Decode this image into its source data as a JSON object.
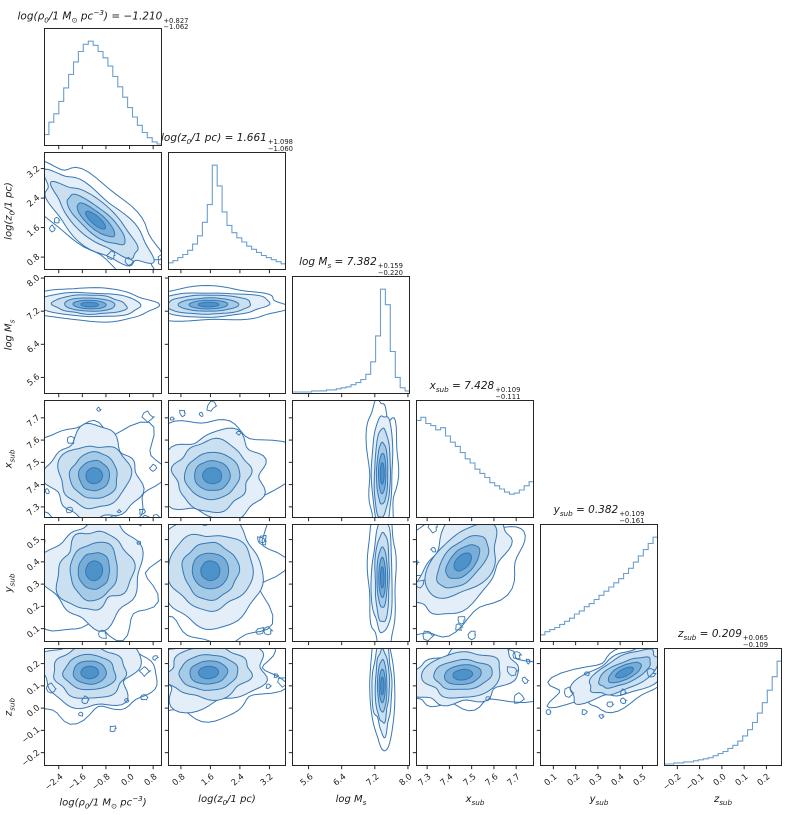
{
  "figure": {
    "background": "#ffffff",
    "spine_color": "#262626",
    "hist_color": "#6b9fce",
    "contour_stroke": "#3677b4",
    "contour_fills": [
      "none",
      "#e4eef8",
      "#cadff0",
      "#a5cbe6",
      "#77add7",
      "#4d92c8"
    ],
    "text_color": "#1a1a1a"
  },
  "chart_data": {
    "type": "heatmap",
    "layout": "corner-triangle-6x6-posterior",
    "description": "Corner plot: 1D marginal histograms on the diagonal, 2D filled contour densities below the diagonal.",
    "parameters": [
      {
        "id": "log_rho0",
        "label": "log(ρ_{0}/1 M_{⊙} pc^{−3})",
        "value": "−1.210",
        "err_plus": "+0.827",
        "err_minus": "−1.062",
        "range": [
          -2.9,
          1.1
        ],
        "ticks": [
          -2.4,
          -1.6,
          -0.8,
          0.0,
          0.8
        ],
        "tick_labels": [
          "−2.4",
          "−1.6",
          "−0.8",
          "0.0",
          "0.8"
        ],
        "hist": [
          0.1,
          0.22,
          0.3,
          0.42,
          0.55,
          0.68,
          0.8,
          0.9,
          0.97,
          1.0,
          0.96,
          0.9,
          0.84,
          0.76,
          0.66,
          0.56,
          0.46,
          0.36,
          0.27,
          0.19,
          0.12,
          0.07,
          0.03,
          0.01
        ]
      },
      {
        "id": "log_z0",
        "label": "log(z_{0}/1 pc)",
        "value": "1.661",
        "err_plus": "+1.098",
        "err_minus": "−1.060",
        "range": [
          0.45,
          3.65
        ],
        "ticks": [
          0.8,
          1.6,
          2.4,
          3.2
        ],
        "tick_labels": [
          "0.8",
          "1.6",
          "2.4",
          "3.2"
        ],
        "hist": [
          0.06,
          0.08,
          0.11,
          0.14,
          0.18,
          0.24,
          0.32,
          0.45,
          0.62,
          1.0,
          0.8,
          0.55,
          0.42,
          0.35,
          0.3,
          0.26,
          0.22,
          0.19,
          0.16,
          0.13,
          0.11,
          0.09,
          0.07,
          0.05
        ]
      },
      {
        "id": "log_Ms",
        "label": "log M_{s}",
        "value": "7.382",
        "err_plus": "+0.159",
        "err_minus": "−0.220",
        "range": [
          5.2,
          8.05
        ],
        "ticks": [
          5.6,
          6.4,
          7.2,
          8.0
        ],
        "tick_labels": [
          "5.6",
          "6.4",
          "7.2",
          "8.0"
        ],
        "hist": [
          0.01,
          0.01,
          0.01,
          0.01,
          0.02,
          0.02,
          0.02,
          0.03,
          0.03,
          0.04,
          0.05,
          0.06,
          0.08,
          0.1,
          0.13,
          0.18,
          0.3,
          0.55,
          1.0,
          0.85,
          0.4,
          0.15,
          0.05,
          0.02
        ]
      },
      {
        "id": "x_sub",
        "label": "x_{sub}",
        "value": "7.428",
        "err_plus": "+0.109",
        "err_minus": "−0.111",
        "range": [
          7.25,
          7.78
        ],
        "ticks": [
          7.3,
          7.4,
          7.5,
          7.6,
          7.7
        ],
        "tick_labels": [
          "7.3",
          "7.4",
          "7.5",
          "7.6",
          "7.7"
        ],
        "hist": [
          0.93,
          0.96,
          0.9,
          0.88,
          0.84,
          0.86,
          0.78,
          0.72,
          0.68,
          0.62,
          0.56,
          0.52,
          0.46,
          0.42,
          0.38,
          0.33,
          0.3,
          0.27,
          0.24,
          0.22,
          0.23,
          0.26,
          0.3,
          0.34
        ]
      },
      {
        "id": "y_sub",
        "label": "y_{sub}",
        "value": "0.382",
        "err_plus": "+0.109",
        "err_minus": "−0.161",
        "range": [
          0.04,
          0.57
        ],
        "ticks": [
          0.1,
          0.2,
          0.3,
          0.4,
          0.5
        ],
        "tick_labels": [
          "0.1",
          "0.2",
          "0.3",
          "0.4",
          "0.5"
        ],
        "hist": [
          0.06,
          0.09,
          0.11,
          0.13,
          0.16,
          0.19,
          0.22,
          0.26,
          0.29,
          0.33,
          0.36,
          0.4,
          0.44,
          0.48,
          0.52,
          0.56,
          0.6,
          0.65,
          0.7,
          0.76,
          0.82,
          0.88,
          0.94,
          1.0
        ]
      },
      {
        "id": "z_sub",
        "label": "z_{sub}",
        "value": "0.209",
        "err_plus": "+0.065",
        "err_minus": "−0.109",
        "range": [
          -0.26,
          0.27
        ],
        "ticks": [
          -0.2,
          -0.1,
          0.0,
          0.1,
          0.2
        ],
        "tick_labels": [
          "−0.2",
          "−0.1",
          "0.0",
          "0.1",
          "0.2"
        ],
        "hist": [
          0.01,
          0.01,
          0.02,
          0.02,
          0.03,
          0.03,
          0.04,
          0.05,
          0.06,
          0.07,
          0.09,
          0.11,
          0.13,
          0.16,
          0.19,
          0.23,
          0.28,
          0.34,
          0.41,
          0.5,
          0.6,
          0.72,
          0.85,
          1.0
        ]
      }
    ],
    "panels_2d": [
      {
        "x": "log_rho0",
        "y": "log_z0",
        "center": [
          -1.15,
          1.8
        ],
        "sigma": [
          0.85,
          0.6
        ],
        "corr": -0.8,
        "noise": 0.55
      },
      {
        "x": "log_rho0",
        "y": "log_Ms",
        "center": [
          -1.35,
          7.36
        ],
        "sigma": [
          0.75,
          0.14
        ],
        "corr": -0.1,
        "noise": 0.25
      },
      {
        "x": "log_z0",
        "y": "log_Ms",
        "center": [
          1.55,
          7.36
        ],
        "sigma": [
          0.7,
          0.14
        ],
        "corr": 0.05,
        "noise": 0.25
      },
      {
        "x": "log_rho0",
        "y": "x_sub",
        "center": [
          -1.2,
          7.44
        ],
        "sigma": [
          0.7,
          0.09
        ],
        "corr": 0.0,
        "noise": 0.5
      },
      {
        "x": "log_z0",
        "y": "x_sub",
        "center": [
          1.65,
          7.44
        ],
        "sigma": [
          0.65,
          0.09
        ],
        "corr": 0.0,
        "noise": 0.5
      },
      {
        "x": "log_Ms",
        "y": "x_sub",
        "center": [
          7.38,
          7.45
        ],
        "sigma": [
          0.12,
          0.12
        ],
        "corr": 0.05,
        "noise": 0.3
      },
      {
        "x": "log_rho0",
        "y": "y_sub",
        "center": [
          -1.2,
          0.36
        ],
        "sigma": [
          0.72,
          0.11
        ],
        "corr": 0.05,
        "noise": 0.5
      },
      {
        "x": "log_z0",
        "y": "y_sub",
        "center": [
          1.6,
          0.36
        ],
        "sigma": [
          0.65,
          0.11
        ],
        "corr": 0.0,
        "noise": 0.5
      },
      {
        "x": "log_Ms",
        "y": "y_sub",
        "center": [
          7.38,
          0.33
        ],
        "sigma": [
          0.11,
          0.12
        ],
        "corr": 0.0,
        "noise": 0.3
      },
      {
        "x": "x_sub",
        "y": "y_sub",
        "center": [
          7.46,
          0.4
        ],
        "sigma": [
          0.1,
          0.1
        ],
        "corr": 0.5,
        "noise": 0.55
      },
      {
        "x": "log_rho0",
        "y": "z_sub",
        "center": [
          -1.35,
          0.16
        ],
        "sigma": [
          0.75,
          0.07
        ],
        "corr": 0.0,
        "noise": 0.5
      },
      {
        "x": "log_z0",
        "y": "z_sub",
        "center": [
          1.55,
          0.16
        ],
        "sigma": [
          0.68,
          0.07
        ],
        "corr": 0.05,
        "noise": 0.5
      },
      {
        "x": "log_Ms",
        "y": "z_sub",
        "center": [
          7.38,
          0.1
        ],
        "sigma": [
          0.1,
          0.1
        ],
        "corr": 0.0,
        "noise": 0.3
      },
      {
        "x": "x_sub",
        "y": "z_sub",
        "center": [
          7.46,
          0.15
        ],
        "sigma": [
          0.11,
          0.06
        ],
        "corr": 0.15,
        "noise": 0.5
      },
      {
        "x": "y_sub",
        "y": "z_sub",
        "center": [
          0.42,
          0.16
        ],
        "sigma": [
          0.1,
          0.06
        ],
        "corr": 0.65,
        "noise": 0.5
      }
    ]
  }
}
